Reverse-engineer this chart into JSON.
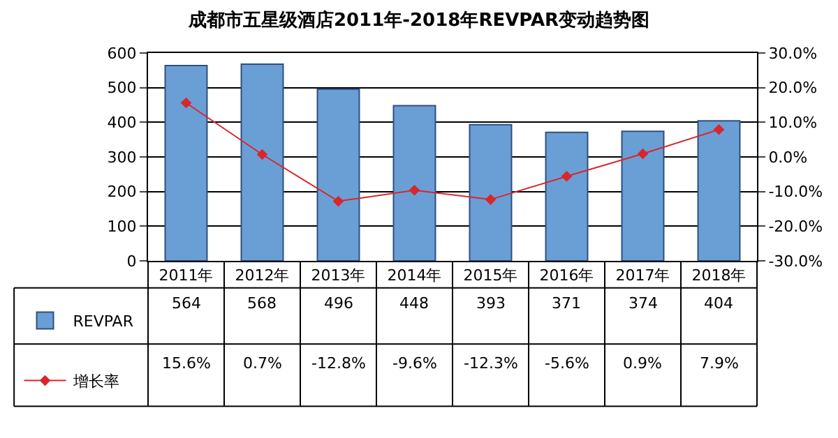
{
  "chart_data": {
    "type": "bar",
    "title": "成都市五星级酒店2011年-2018年REVPAR变动趋势图",
    "categories": [
      "2011年",
      "2012年",
      "2013年",
      "2014年",
      "2015年",
      "2016年",
      "2017年",
      "2018年"
    ],
    "series": [
      {
        "name": "REVPAR",
        "color": "#6a9fd6",
        "values": [
          564,
          568,
          496,
          448,
          393,
          371,
          374,
          404
        ],
        "value_labels": [
          "564",
          "568",
          "496",
          "448",
          "393",
          "371",
          "374",
          "404"
        ]
      },
      {
        "name": "增长率",
        "type": "line",
        "axis": "y2",
        "color": "#d9262b",
        "marker": "diamond",
        "values": [
          15.6,
          0.7,
          -12.8,
          -9.6,
          -12.3,
          -5.6,
          0.9,
          7.9
        ],
        "value_labels": [
          "15.6%",
          "0.7%",
          "-12.8%",
          "-9.6%",
          "-12.3%",
          "-5.6%",
          "0.9%",
          "7.9%"
        ]
      }
    ],
    "ylim": [
      0,
      600
    ],
    "yticks": [
      0,
      100,
      200,
      300,
      400,
      500,
      600
    ],
    "y2lim": [
      -30,
      30
    ],
    "y2ticks": [
      {
        "value": -30,
        "label": "-30.0%"
      },
      {
        "value": -20,
        "label": "-20.0%"
      },
      {
        "value": -10,
        "label": "-10.0%"
      },
      {
        "value": 0,
        "label": "0.0%"
      },
      {
        "value": 10,
        "label": "10.0%"
      },
      {
        "value": 20,
        "label": "20.0%"
      },
      {
        "value": 30,
        "label": "30.0%"
      }
    ],
    "grid": "y",
    "legend": "bottom left"
  }
}
